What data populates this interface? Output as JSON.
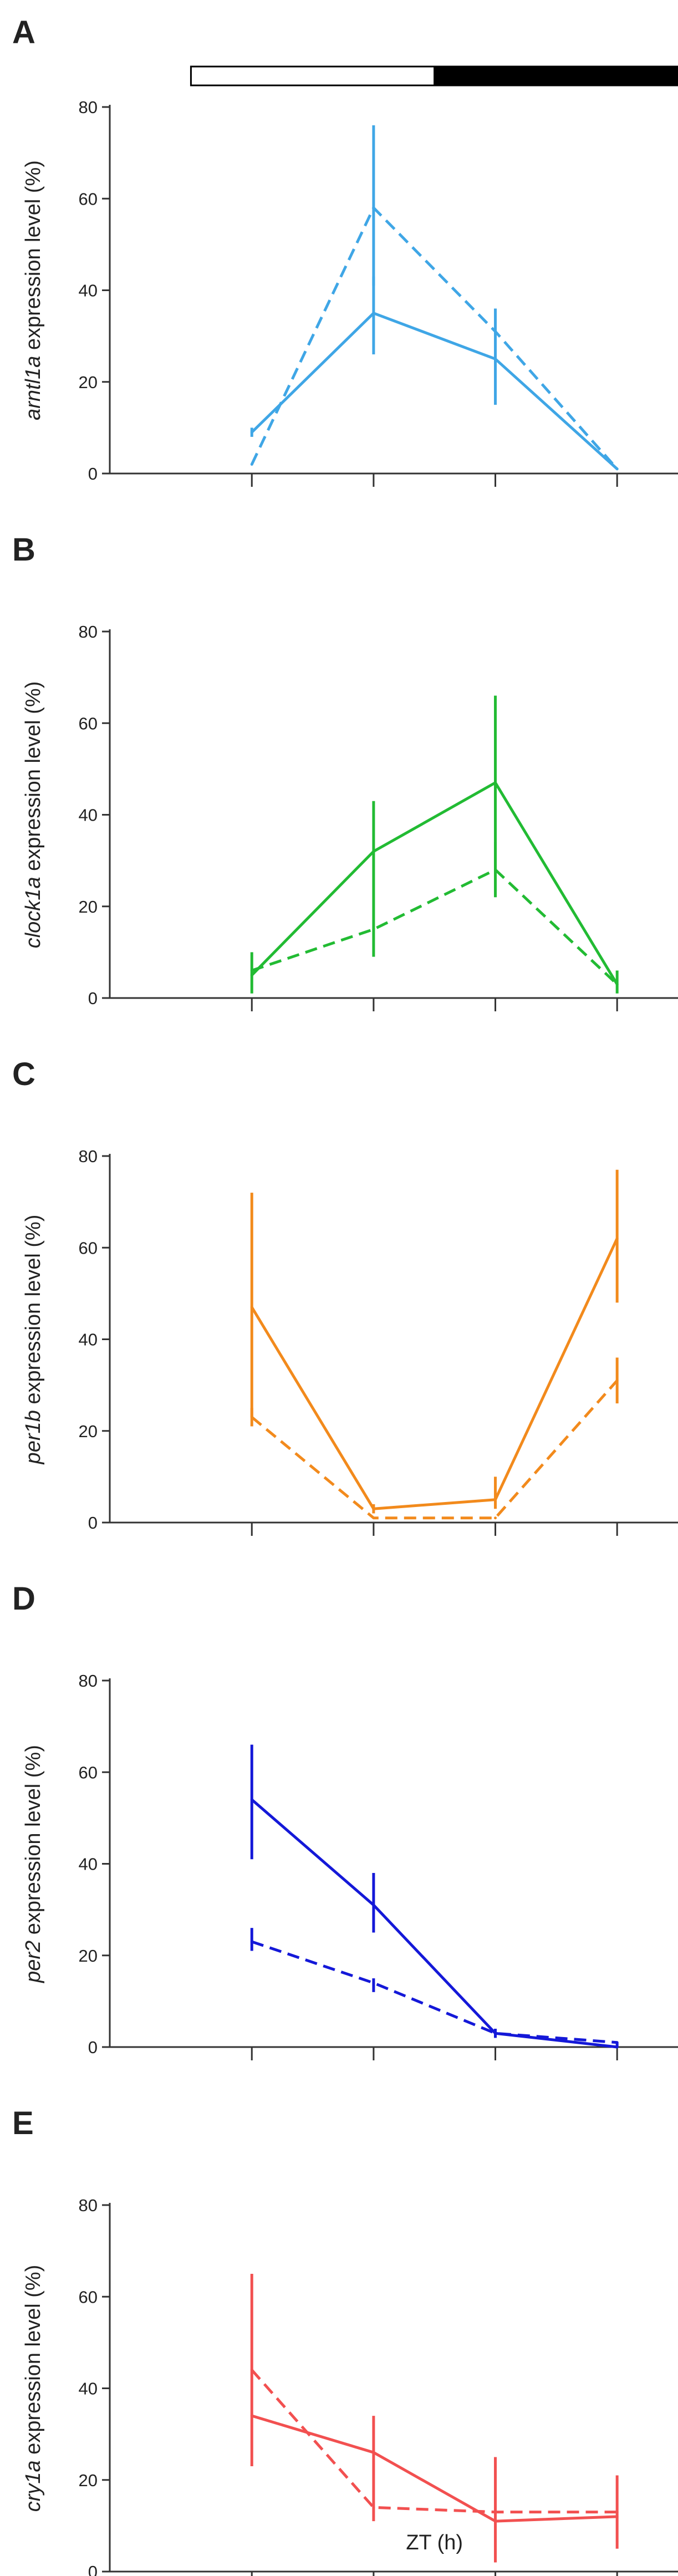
{
  "light_dark_bar": {
    "segments": [
      {
        "phase": "light",
        "x_start": 0,
        "x_end": 12,
        "color": "#ffffff"
      },
      {
        "phase": "dark",
        "x_start": 12,
        "x_end": 24,
        "color": "#000000"
      }
    ]
  },
  "x_axis": {
    "label": "ZT (h)",
    "ticks": [
      3,
      9,
      15,
      21
    ],
    "range": [
      -4,
      24
    ]
  },
  "y_axis": {
    "ticks": [
      0,
      20,
      40,
      60,
      80
    ],
    "range": [
      0,
      80
    ]
  },
  "chart_data": [
    {
      "type": "line",
      "panel": "A",
      "ylabel_gene": "arntl1a",
      "ylabel_suffix": " expression level (%)",
      "color": "#3fa6e6",
      "x": [
        3,
        9,
        15,
        21
      ],
      "ylim": [
        0,
        80
      ],
      "series": [
        {
          "style": "solid",
          "values": [
            9,
            35,
            25,
            1
          ],
          "error": [
            [
              8,
              10
            ],
            [
              26,
              43
            ],
            [
              15,
              36
            ],
            [
              1,
              1
            ]
          ]
        },
        {
          "style": "dashed",
          "values": [
            2,
            58,
            31,
            1
          ],
          "error": [
            [
              2,
              2
            ],
            [
              41,
              76
            ],
            [
              31,
              31
            ],
            [
              1,
              1
            ]
          ]
        }
      ]
    },
    {
      "type": "line",
      "panel": "B",
      "ylabel_gene": "clock1a",
      "ylabel_suffix": " expression level (%)",
      "color": "#22bb33",
      "x": [
        3,
        9,
        15,
        21
      ],
      "ylim": [
        0,
        80
      ],
      "series": [
        {
          "style": "solid",
          "values": [
            5,
            32,
            47,
            3
          ],
          "error": [
            [
              1,
              10
            ],
            [
              21,
              43
            ],
            [
              28,
              66
            ],
            [
              1,
              6
            ]
          ]
        },
        {
          "style": "dashed",
          "values": [
            6,
            15,
            28,
            3
          ],
          "error": [
            [
              6,
              6
            ],
            [
              9,
              21
            ],
            [
              22,
              34
            ],
            [
              3,
              3
            ]
          ]
        }
      ]
    },
    {
      "type": "line",
      "panel": "C",
      "ylabel_gene": "per1b",
      "ylabel_suffix": " expression level (%)",
      "color": "#f28a1c",
      "x": [
        3,
        9,
        15,
        21
      ],
      "ylim": [
        0,
        80
      ],
      "series": [
        {
          "style": "solid",
          "values": [
            47,
            3,
            5,
            62
          ],
          "error": [
            [
              23,
              72
            ],
            [
              2,
              4
            ],
            [
              3,
              10
            ],
            [
              48,
              77
            ]
          ]
        },
        {
          "style": "dashed",
          "values": [
            23,
            1,
            1,
            31
          ],
          "error": [
            [
              21,
              25
            ],
            [
              1,
              1
            ],
            [
              1,
              1
            ],
            [
              26,
              36
            ]
          ]
        }
      ]
    },
    {
      "type": "line",
      "panel": "D",
      "ylabel_gene": "per2",
      "ylabel_suffix": " expression level (%)",
      "color": "#1418d8",
      "x": [
        3,
        9,
        15,
        21
      ],
      "ylim": [
        0,
        80
      ],
      "series": [
        {
          "style": "solid",
          "values": [
            54,
            31,
            3,
            0
          ],
          "error": [
            [
              41,
              66
            ],
            [
              25,
              38
            ],
            [
              2,
              4
            ],
            [
              0,
              1
            ]
          ]
        },
        {
          "style": "dashed",
          "values": [
            23,
            14,
            3,
            1
          ],
          "error": [
            [
              21,
              26
            ],
            [
              12,
              15
            ],
            [
              3,
              3
            ],
            [
              1,
              1
            ]
          ]
        }
      ]
    },
    {
      "type": "line",
      "panel": "E",
      "ylabel_gene": "cry1a",
      "ylabel_suffix": " expression level (%)",
      "color": "#f25050",
      "x": [
        3,
        9,
        15,
        21
      ],
      "ylim": [
        0,
        80
      ],
      "series": [
        {
          "style": "solid",
          "values": [
            34,
            26,
            11,
            12
          ],
          "error": [
            [
              23,
              65
            ],
            [
              14,
              34
            ],
            [
              2,
              25
            ],
            [
              5,
              21
            ]
          ]
        },
        {
          "style": "dashed",
          "values": [
            44,
            14,
            13,
            13
          ],
          "error": [
            [
              44,
              44
            ],
            [
              11,
              14
            ],
            [
              13,
              13
            ],
            [
              13,
              13
            ]
          ]
        }
      ]
    }
  ]
}
